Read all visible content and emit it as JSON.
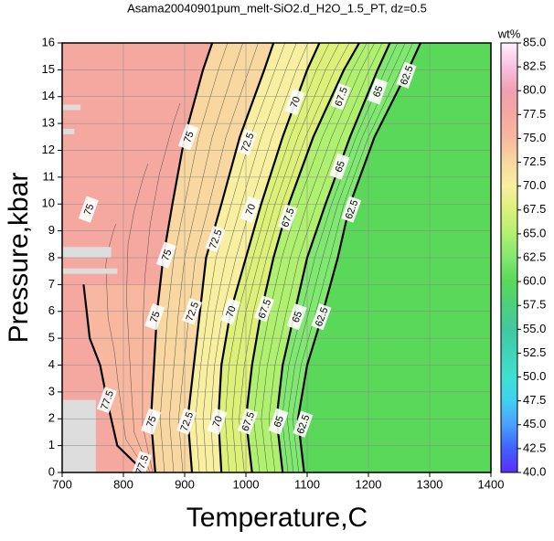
{
  "chart_data": {
    "type": "contour",
    "title": "Asama20040901pum_melt-SiO2.d_H2O_1.5_PT, dz=0.5",
    "xlabel": "Temperature,C",
    "ylabel": "Pressure,kbar",
    "xlim": [
      700,
      1400
    ],
    "xticks": [
      700,
      800,
      900,
      1000,
      1100,
      1200,
      1300,
      1400
    ],
    "ylim": [
      0,
      16
    ],
    "yticks": [
      0,
      1,
      2,
      3,
      4,
      5,
      6,
      7,
      8,
      9,
      10,
      11,
      12,
      13,
      14,
      15,
      16
    ],
    "grid": true,
    "contour_levels": [
      62.5,
      65,
      67.5,
      70,
      72.5,
      75,
      77.5
    ],
    "colorbar": {
      "label": "wt%",
      "lim": [
        40,
        85
      ],
      "ticks": [
        {
          "value": 40,
          "label": "40.0"
        },
        42.5,
        {
          "value": 45,
          "label": "45.0"
        },
        47.5,
        {
          "value": 50,
          "label": "50.0"
        },
        52.5,
        {
          "value": 55,
          "label": "55.0"
        },
        57.5,
        {
          "value": 60,
          "label": "60.0"
        },
        62.5,
        {
          "value": 65,
          "label": "65.0"
        },
        67.5,
        {
          "value": 70,
          "label": "70.0"
        },
        72.5,
        {
          "value": 75,
          "label": "75.0"
        },
        77.5,
        {
          "value": 80,
          "label": "80.0"
        },
        82.5,
        {
          "value": 85,
          "label": "85.0"
        }
      ],
      "colormap": [
        [
          40,
          "#5a2dff"
        ],
        [
          42.5,
          "#4060ff"
        ],
        [
          45,
          "#4aa0ff"
        ],
        [
          47.5,
          "#40d0f0"
        ],
        [
          50,
          "#40e0d0"
        ],
        [
          55,
          "#40c8a0"
        ],
        [
          60,
          "#5ad85a"
        ],
        [
          62.5,
          "#80e870"
        ],
        [
          65,
          "#b0f070"
        ],
        [
          67.5,
          "#dcf07a"
        ],
        [
          70,
          "#f8f0a0"
        ],
        [
          72.5,
          "#f8d8a0"
        ],
        [
          75,
          "#f8b8a0"
        ],
        [
          77.5,
          "#f5a8a0"
        ],
        [
          80,
          "#f0a0b0"
        ],
        [
          82.5,
          "#f8c0e0"
        ],
        [
          85,
          "#fff0ff"
        ]
      ]
    }
  }
}
